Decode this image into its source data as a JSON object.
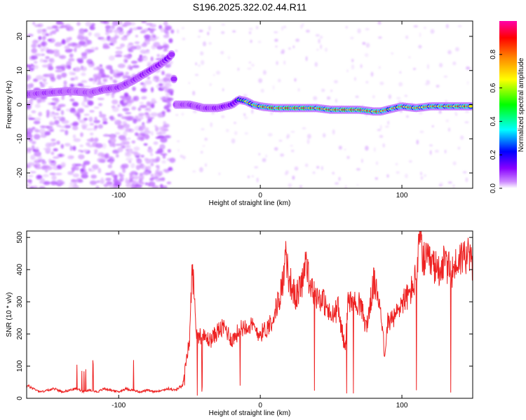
{
  "title": "S196.2025.322.02.44.R11",
  "chart_data": [
    {
      "type": "heatmap",
      "xlabel": "Height of straight line (km)",
      "ylabel": "Frequency (Hz)",
      "xlim": [
        -165,
        150
      ],
      "ylim": [
        -24.5,
        24.5
      ],
      "xticks": [
        -100,
        0,
        100
      ],
      "yticks": [
        -20,
        -10,
        0,
        10,
        20
      ],
      "colorbar": {
        "label": "Normalized spectral amplitude",
        "range": [
          0,
          1
        ],
        "ticks": [
          0.0,
          0.2,
          0.4,
          0.6,
          0.8
        ],
        "ticklabels": [
          "0.0",
          "0.2",
          "0.4",
          "0.6",
          "0.8"
        ],
        "colors": [
          "#ffffff",
          "#cc88ff",
          "#8800ff",
          "#0000ff",
          "#00ffff",
          "#00ff00",
          "#ffff00",
          "#ff8800",
          "#ff0000",
          "#ff00aa"
        ]
      },
      "ridge": {
        "x": [
          -165,
          -150,
          -135,
          -120,
          -110,
          -100,
          -90,
          -80,
          -70,
          -64,
          -62,
          -60,
          -50,
          -40,
          -30,
          -20,
          -15,
          -10,
          -5,
          0,
          10,
          20,
          30,
          40,
          50,
          60,
          70,
          80,
          85,
          90,
          95,
          100,
          110,
          120,
          130,
          140,
          150
        ],
        "y": [
          3,
          3.5,
          4,
          3.5,
          4.5,
          5,
          7,
          9.5,
          12,
          14,
          15,
          0,
          0,
          -1,
          -1,
          0,
          1.5,
          1,
          0,
          -0.5,
          -1,
          -1,
          -1,
          -1,
          -1.5,
          -1.5,
          -1.5,
          -2,
          -2,
          -1.5,
          -1,
          -0.5,
          -1,
          -0.5,
          -0.5,
          -0.5,
          -0.5
        ],
        "peak_amplitude": [
          0.3,
          0.35,
          0.3,
          0.3,
          0.35,
          0.35,
          0.35,
          0.4,
          0.4,
          0.45,
          0.45,
          0.3,
          0.35,
          0.35,
          0.4,
          0.45,
          0.6,
          0.75,
          0.8,
          0.85,
          0.95,
          0.95,
          0.95,
          0.9,
          0.9,
          0.95,
          0.95,
          0.9,
          0.95,
          0.8,
          0.8,
          0.85,
          0.85,
          0.85,
          0.85,
          0.9,
          0.9
        ]
      },
      "noise_region": [
        -165,
        -62
      ]
    },
    {
      "type": "line",
      "xlabel": "Height of straight line (km)",
      "ylabel": "SNR (10 * v/v)",
      "xlim": [
        -165,
        150
      ],
      "ylim": [
        0,
        520
      ],
      "xticks": [
        -100,
        0,
        100
      ],
      "yticks": [
        0,
        100,
        200,
        300,
        400,
        500
      ],
      "line_color": "#ee2222",
      "series": [
        {
          "x": [
            -165,
            -160,
            -155,
            -150,
            -145,
            -140,
            -135,
            -130,
            -125,
            -120,
            -115,
            -110,
            -105,
            -100,
            -95,
            -90,
            -85,
            -80,
            -75,
            -70,
            -65,
            -60,
            -55,
            -50,
            -48,
            -45,
            -40,
            -35,
            -30,
            -25,
            -20,
            -15,
            -10,
            -5,
            0,
            5,
            10,
            15,
            18,
            20,
            25,
            30,
            32,
            35,
            40,
            45,
            50,
            55,
            60,
            62,
            65,
            70,
            75,
            80,
            85,
            88,
            90,
            95,
            100,
            105,
            108,
            110,
            113,
            115,
            120,
            125,
            130,
            135,
            140,
            145,
            150
          ],
          "y": [
            40,
            30,
            20,
            25,
            30,
            20,
            25,
            30,
            20,
            25,
            20,
            30,
            25,
            20,
            30,
            25,
            20,
            25,
            20,
            25,
            30,
            25,
            40,
            180,
            410,
            200,
            190,
            180,
            210,
            220,
            180,
            210,
            230,
            220,
            200,
            220,
            260,
            340,
            430,
            380,
            310,
            370,
            440,
            340,
            320,
            300,
            250,
            280,
            150,
            310,
            290,
            300,
            220,
            360,
            290,
            120,
            240,
            250,
            300,
            320,
            350,
            380,
            500,
            430,
            420,
            400,
            420,
            390,
            430,
            450,
            420
          ]
        }
      ]
    }
  ]
}
